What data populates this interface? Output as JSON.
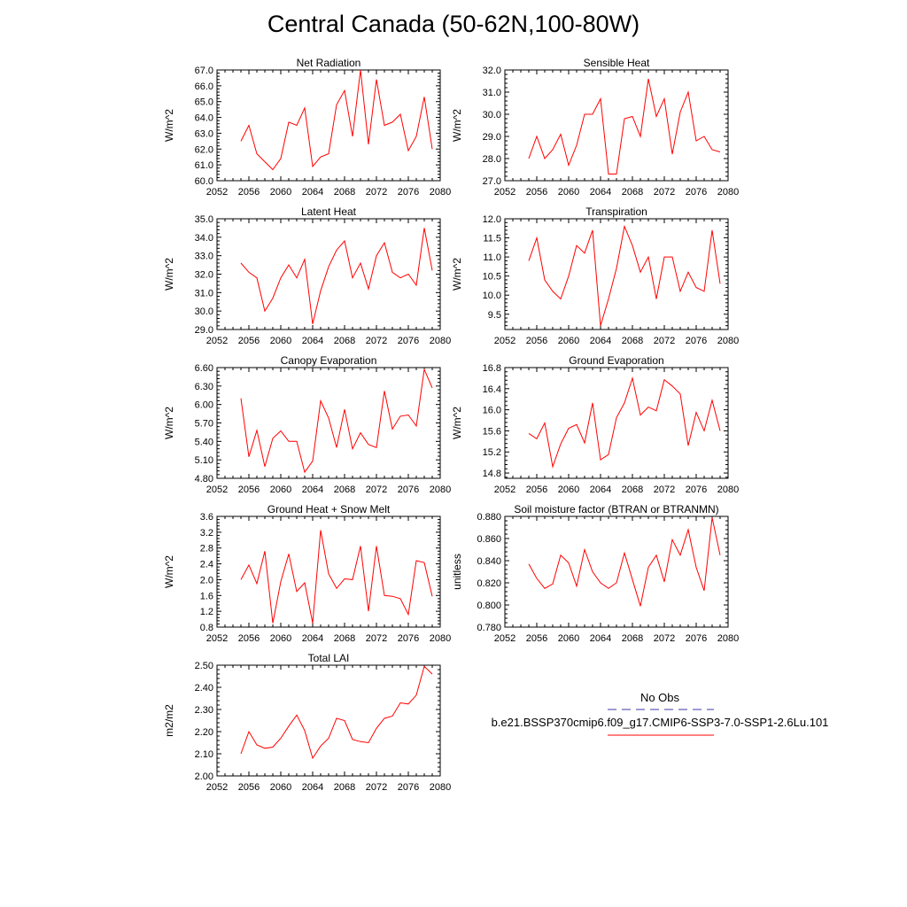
{
  "title": "Central Canada (50-62N,100-80W)",
  "legend": {
    "title": "No Obs",
    "entries": [
      {
        "label": "",
        "color": "#3a3aa8",
        "dash": true
      },
      {
        "label": "b.e21.BSSP370cmip6.f09_g17.CMIP6-SSP3-7.0-SSP1-2.6Lu.101",
        "color": "#ff0000",
        "dash": false
      }
    ]
  },
  "chart_data": [
    {
      "type": "line",
      "title": "Net Radiation",
      "xlabel": "",
      "ylabel": "W/m^2",
      "xlim": [
        2052,
        2080
      ],
      "ylim": [
        60,
        67
      ],
      "xticks": [
        2052,
        2056,
        2060,
        2064,
        2068,
        2072,
        2076,
        2080
      ],
      "xtick_labels": [
        "2052",
        "2056",
        "2060",
        "2064",
        "2068",
        "2072",
        "2076",
        "2080"
      ],
      "yticks": [
        60,
        61,
        62,
        63,
        64,
        65,
        66,
        67
      ],
      "ytick_labels": [
        "60.0",
        "61.0",
        "62.0",
        "63.0",
        "64.0",
        "65.0",
        "66.0",
        "67.0"
      ],
      "color": "#ff0000",
      "x": [
        2055,
        2056,
        2057,
        2058,
        2059,
        2060,
        2061,
        2062,
        2063,
        2064,
        2065,
        2066,
        2067,
        2068,
        2069,
        2070,
        2071,
        2072,
        2073,
        2074,
        2075,
        2076,
        2077,
        2078,
        2079
      ],
      "y": [
        62.5,
        63.5,
        61.7,
        61.2,
        60.7,
        61.4,
        63.7,
        63.5,
        64.6,
        60.9,
        61.5,
        61.7,
        64.8,
        65.7,
        62.8,
        67.0,
        62.3,
        66.4,
        63.5,
        63.7,
        64.2,
        61.9,
        62.8,
        65.3,
        62.0
      ]
    },
    {
      "type": "line",
      "title": "Sensible Heat",
      "xlabel": "",
      "ylabel": "W/m^2",
      "xlim": [
        2052,
        2080
      ],
      "ylim": [
        27,
        32
      ],
      "xticks": [
        2052,
        2056,
        2060,
        2064,
        2068,
        2072,
        2076,
        2080
      ],
      "xtick_labels": [
        "2052",
        "2056",
        "2060",
        "2064",
        "2068",
        "2072",
        "2076",
        "2080"
      ],
      "yticks": [
        27,
        28,
        29,
        30,
        31,
        32
      ],
      "ytick_labels": [
        "27.0",
        "28.0",
        "29.0",
        "30.0",
        "31.0",
        "32.0"
      ],
      "color": "#ff0000",
      "x": [
        2055,
        2056,
        2057,
        2058,
        2059,
        2060,
        2061,
        2062,
        2063,
        2064,
        2065,
        2066,
        2067,
        2068,
        2069,
        2070,
        2071,
        2072,
        2073,
        2074,
        2075,
        2076,
        2077,
        2078,
        2079
      ],
      "y": [
        28.0,
        29.0,
        28.0,
        28.4,
        29.1,
        27.7,
        28.6,
        30.0,
        30.0,
        30.7,
        27.3,
        27.3,
        29.8,
        29.9,
        29.0,
        31.6,
        29.9,
        30.7,
        28.2,
        30.1,
        31.0,
        28.8,
        29.0,
        28.4,
        28.3
      ]
    },
    {
      "type": "line",
      "title": "Latent Heat",
      "xlabel": "",
      "ylabel": "W/m^2",
      "xlim": [
        2052,
        2080
      ],
      "ylim": [
        29,
        35
      ],
      "xticks": [
        2052,
        2056,
        2060,
        2064,
        2068,
        2072,
        2076,
        2080
      ],
      "xtick_labels": [
        "2052",
        "2056",
        "2060",
        "2064",
        "2068",
        "2072",
        "2076",
        "2080"
      ],
      "yticks": [
        29,
        30,
        31,
        32,
        33,
        34,
        35
      ],
      "ytick_labels": [
        "29.0",
        "30.0",
        "31.0",
        "32.0",
        "33.0",
        "34.0",
        "35.0"
      ],
      "color": "#ff0000",
      "x": [
        2055,
        2056,
        2057,
        2058,
        2059,
        2060,
        2061,
        2062,
        2063,
        2064,
        2065,
        2066,
        2067,
        2068,
        2069,
        2070,
        2071,
        2072,
        2073,
        2074,
        2075,
        2076,
        2077,
        2078,
        2079
      ],
      "y": [
        32.6,
        32.1,
        31.8,
        30.0,
        30.7,
        31.8,
        32.5,
        31.8,
        32.8,
        29.3,
        31.1,
        32.4,
        33.3,
        33.8,
        31.8,
        32.6,
        31.2,
        33.0,
        33.7,
        32.1,
        31.8,
        32.0,
        31.4,
        34.5,
        32.2
      ]
    },
    {
      "type": "line",
      "title": "Transpiration",
      "xlabel": "",
      "ylabel": "W/m^2",
      "xlim": [
        2052,
        2080
      ],
      "ylim": [
        9.1,
        12.0
      ],
      "xticks": [
        2052,
        2056,
        2060,
        2064,
        2068,
        2072,
        2076,
        2080
      ],
      "xtick_labels": [
        "2052",
        "2056",
        "2060",
        "2064",
        "2068",
        "2072",
        "2076",
        "2080"
      ],
      "yticks": [
        9.5,
        10.0,
        10.5,
        11.0,
        11.5,
        12.0
      ],
      "ytick_labels": [
        "9.5",
        "10.0",
        "10.5",
        "11.0",
        "11.5",
        "12.0"
      ],
      "color": "#ff0000",
      "x": [
        2055,
        2056,
        2057,
        2058,
        2059,
        2060,
        2061,
        2062,
        2063,
        2064,
        2065,
        2066,
        2067,
        2068,
        2069,
        2070,
        2071,
        2072,
        2073,
        2074,
        2075,
        2076,
        2077,
        2078,
        2079
      ],
      "y": [
        10.9,
        11.5,
        10.4,
        10.1,
        9.9,
        10.5,
        11.3,
        11.1,
        11.7,
        9.2,
        9.9,
        10.7,
        11.8,
        11.3,
        10.6,
        11.0,
        9.9,
        11.0,
        11.0,
        10.1,
        10.6,
        10.2,
        10.1,
        11.7,
        10.3
      ]
    },
    {
      "type": "line",
      "title": "Canopy Evaporation",
      "xlabel": "",
      "ylabel": "W/m^2",
      "xlim": [
        2052,
        2080
      ],
      "ylim": [
        4.8,
        6.6
      ],
      "xticks": [
        2052,
        2056,
        2060,
        2064,
        2068,
        2072,
        2076,
        2080
      ],
      "xtick_labels": [
        "2052",
        "2056",
        "2060",
        "2064",
        "2068",
        "2072",
        "2076",
        "2080"
      ],
      "yticks": [
        4.8,
        5.1,
        5.4,
        5.7,
        6.0,
        6.3,
        6.6
      ],
      "ytick_labels": [
        "4.80",
        "5.10",
        "5.40",
        "5.70",
        "6.00",
        "6.30",
        "6.60"
      ],
      "color": "#ff0000",
      "x": [
        2055,
        2056,
        2057,
        2058,
        2059,
        2060,
        2061,
        2062,
        2063,
        2064,
        2065,
        2066,
        2067,
        2068,
        2069,
        2070,
        2071,
        2072,
        2073,
        2074,
        2075,
        2076,
        2077,
        2078,
        2079
      ],
      "y": [
        6.1,
        5.15,
        5.58,
        4.99,
        5.45,
        5.57,
        5.4,
        5.4,
        4.9,
        5.08,
        6.06,
        5.78,
        5.3,
        5.92,
        5.28,
        5.54,
        5.35,
        5.3,
        6.22,
        5.6,
        5.81,
        5.83,
        5.65,
        6.57,
        6.27
      ]
    },
    {
      "type": "line",
      "title": "Ground Evaporation",
      "xlabel": "",
      "ylabel": "W/m^2",
      "xlim": [
        2052,
        2080
      ],
      "ylim": [
        14.7,
        16.8
      ],
      "xticks": [
        2052,
        2056,
        2060,
        2064,
        2068,
        2072,
        2076,
        2080
      ],
      "xtick_labels": [
        "2052",
        "2056",
        "2060",
        "2064",
        "2068",
        "2072",
        "2076",
        "2080"
      ],
      "yticks": [
        14.8,
        15.2,
        15.6,
        16.0,
        16.4,
        16.8
      ],
      "ytick_labels": [
        "14.8",
        "15.2",
        "15.6",
        "16.0",
        "16.4",
        "16.8"
      ],
      "color": "#ff0000",
      "x": [
        2055,
        2056,
        2057,
        2058,
        2059,
        2060,
        2061,
        2062,
        2063,
        2064,
        2065,
        2066,
        2067,
        2068,
        2069,
        2070,
        2071,
        2072,
        2073,
        2074,
        2075,
        2076,
        2077,
        2078,
        2079
      ],
      "y": [
        15.55,
        15.45,
        15.75,
        14.92,
        15.35,
        15.65,
        15.72,
        15.37,
        16.13,
        15.05,
        15.15,
        15.85,
        16.13,
        16.6,
        15.9,
        16.05,
        15.98,
        16.57,
        16.45,
        16.3,
        15.32,
        15.95,
        15.6,
        16.18,
        15.6
      ]
    },
    {
      "type": "line",
      "title": "Ground Heat + Snow Melt",
      "xlabel": "",
      "ylabel": "W/m^2",
      "xlim": [
        2052,
        2080
      ],
      "ylim": [
        0.8,
        3.6
      ],
      "xticks": [
        2052,
        2056,
        2060,
        2064,
        2068,
        2072,
        2076,
        2080
      ],
      "xtick_labels": [
        "2052",
        "2056",
        "2060",
        "2064",
        "2068",
        "2072",
        "2076",
        "2080"
      ],
      "yticks": [
        0.8,
        1.2,
        1.6,
        2.0,
        2.4,
        2.8,
        3.2,
        3.6
      ],
      "ytick_labels": [
        "0.8",
        "1.2",
        "1.6",
        "2.0",
        "2.4",
        "2.8",
        "3.2",
        "3.6"
      ],
      "color": "#ff0000",
      "x": [
        2055,
        2056,
        2057,
        2058,
        2059,
        2060,
        2061,
        2062,
        2063,
        2064,
        2065,
        2066,
        2067,
        2068,
        2069,
        2070,
        2071,
        2072,
        2073,
        2074,
        2075,
        2076,
        2077,
        2078,
        2079
      ],
      "y": [
        2.0,
        2.37,
        1.9,
        2.72,
        0.9,
        1.95,
        2.65,
        1.7,
        1.92,
        0.9,
        3.25,
        2.15,
        1.78,
        2.02,
        2.0,
        2.85,
        1.2,
        2.85,
        1.6,
        1.58,
        1.52,
        1.12,
        2.48,
        2.43,
        1.58
      ]
    },
    {
      "type": "line",
      "title": "Soil moisture factor (BTRAN or BTRANMN)",
      "xlabel": "",
      "ylabel": "unitless",
      "xlim": [
        2052,
        2080
      ],
      "ylim": [
        0.78,
        0.88
      ],
      "xticks": [
        2052,
        2056,
        2060,
        2064,
        2068,
        2072,
        2076,
        2080
      ],
      "xtick_labels": [
        "2052",
        "2056",
        "2060",
        "2064",
        "2068",
        "2072",
        "2076",
        "2080"
      ],
      "yticks": [
        0.78,
        0.8,
        0.82,
        0.84,
        0.86,
        0.88
      ],
      "ytick_labels": [
        "0.780",
        "0.800",
        "0.820",
        "0.840",
        "0.860",
        "0.880"
      ],
      "color": "#ff0000",
      "x": [
        2055,
        2056,
        2057,
        2058,
        2059,
        2060,
        2061,
        2062,
        2063,
        2064,
        2065,
        2066,
        2067,
        2068,
        2069,
        2070,
        2071,
        2072,
        2073,
        2074,
        2075,
        2076,
        2077,
        2078,
        2079
      ],
      "y": [
        0.837,
        0.824,
        0.815,
        0.819,
        0.845,
        0.838,
        0.817,
        0.85,
        0.83,
        0.82,
        0.815,
        0.82,
        0.847,
        0.823,
        0.799,
        0.834,
        0.845,
        0.821,
        0.859,
        0.845,
        0.868,
        0.834,
        0.813,
        0.879,
        0.845
      ]
    },
    {
      "type": "line",
      "title": "Total LAI",
      "xlabel": "",
      "ylabel": "m2/m2",
      "xlim": [
        2052,
        2080
      ],
      "ylim": [
        2.0,
        2.5
      ],
      "xticks": [
        2052,
        2056,
        2060,
        2064,
        2068,
        2072,
        2076,
        2080
      ],
      "xtick_labels": [
        "2052",
        "2056",
        "2060",
        "2064",
        "2068",
        "2072",
        "2076",
        "2080"
      ],
      "yticks": [
        2.0,
        2.1,
        2.2,
        2.3,
        2.4,
        2.5
      ],
      "ytick_labels": [
        "2.00",
        "2.10",
        "2.20",
        "2.30",
        "2.40",
        "2.50"
      ],
      "color": "#ff0000",
      "x": [
        2055,
        2056,
        2057,
        2058,
        2059,
        2060,
        2061,
        2062,
        2063,
        2064,
        2065,
        2066,
        2067,
        2068,
        2069,
        2070,
        2071,
        2072,
        2073,
        2074,
        2075,
        2076,
        2077,
        2078,
        2079
      ],
      "y": [
        2.1,
        2.2,
        2.14,
        2.125,
        2.13,
        2.17,
        2.225,
        2.275,
        2.205,
        2.08,
        2.135,
        2.17,
        2.26,
        2.25,
        2.165,
        2.155,
        2.15,
        2.215,
        2.26,
        2.27,
        2.33,
        2.325,
        2.365,
        2.495,
        2.46
      ]
    }
  ]
}
